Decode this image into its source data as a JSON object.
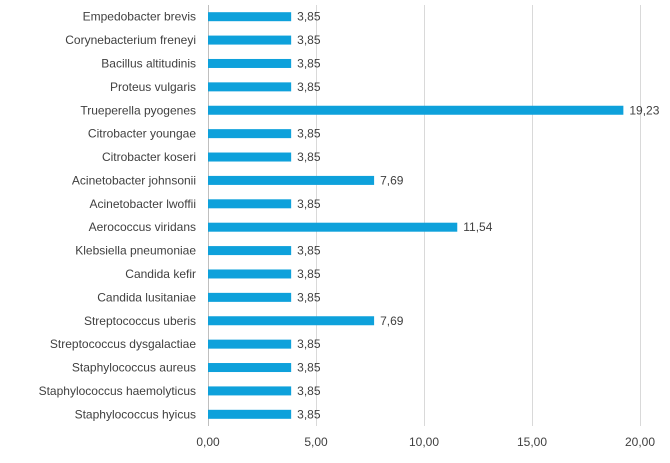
{
  "chart_data": {
    "type": "bar",
    "orientation": "horizontal",
    "categories": [
      "Empedobacter brevis",
      "Corynebacterium freneyi",
      "Bacillus altitudinis",
      "Proteus vulgaris",
      "Trueperella pyogenes",
      "Citrobacter youngae",
      "Citrobacter koseri",
      "Acinetobacter johnsonii",
      "Acinetobacter lwoffii",
      "Aerococcus viridans",
      "Klebsiella pneumoniae",
      "Candida kefir",
      "Candida lusitaniae",
      "Streptococcus uberis",
      "Streptococcus dysgalactiae",
      "Staphylococcus aureus",
      "Staphylococcus haemolyticus",
      "Staphylococcus hyicus"
    ],
    "values": [
      3.85,
      3.85,
      3.85,
      3.85,
      19.23,
      3.85,
      3.85,
      7.69,
      3.85,
      11.54,
      3.85,
      3.85,
      3.85,
      7.69,
      3.85,
      3.85,
      3.85,
      3.85
    ],
    "value_labels": [
      "3,85",
      "3,85",
      "3,85",
      "3,85",
      "19,23",
      "3,85",
      "3,85",
      "7,69",
      "3,85",
      "11,54",
      "3,85",
      "3,85",
      "3,85",
      "7,69",
      "3,85",
      "3,85",
      "3,85",
      "3,85"
    ],
    "x_ticks": [
      0,
      5,
      10,
      15,
      20
    ],
    "x_tick_labels": [
      "0,00",
      "5,00",
      "10,00",
      "15,00",
      "20,00"
    ],
    "xlim": [
      0,
      20
    ],
    "title": "",
    "xlabel": "",
    "ylabel": "",
    "grid": "vertical",
    "legend": "none",
    "bar_color": "#0ea1db"
  }
}
